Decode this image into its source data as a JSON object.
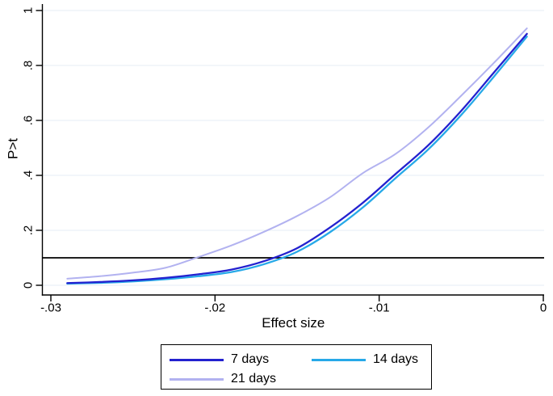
{
  "figure": {
    "background": "#ffffff",
    "axis_color": "#000000",
    "grid_color": "#e9f1f6",
    "text_color": "#000000"
  },
  "chart_data": {
    "type": "line",
    "title": "",
    "xlabel": "Effect size",
    "ylabel": "P>t",
    "x_range": [
      -0.03,
      0
    ],
    "y_range": [
      0,
      1
    ],
    "grid": "horizontal",
    "legend_position": "bottom-center-boxed",
    "x_ticks": {
      "values": [
        -0.03,
        -0.02,
        -0.01,
        0
      ],
      "labels": [
        "-.03",
        "-.02",
        "-.01",
        "0"
      ]
    },
    "y_ticks": {
      "values": [
        0,
        0.2,
        0.4,
        0.6,
        0.8,
        1
      ],
      "labels": [
        "0",
        ".2",
        ".4",
        ".6",
        ".8",
        "1"
      ]
    },
    "reference_line": {
      "y": 0.1,
      "color": "#000000"
    },
    "x": [
      -0.029,
      -0.027,
      -0.025,
      -0.023,
      -0.021,
      -0.019,
      -0.017,
      -0.015,
      -0.013,
      -0.011,
      -0.009,
      -0.007,
      -0.005,
      -0.003,
      -0.001
    ],
    "series": [
      {
        "name": "7 days",
        "color": "#2321cf",
        "width": 2.3,
        "values": [
          0.008,
          0.012,
          0.018,
          0.027,
          0.04,
          0.057,
          0.088,
          0.135,
          0.21,
          0.3,
          0.405,
          0.51,
          0.635,
          0.775,
          0.915
        ]
      },
      {
        "name": "14 days",
        "color": "#27a9e8",
        "width": 2.3,
        "values": [
          0.006,
          0.009,
          0.014,
          0.022,
          0.033,
          0.048,
          0.077,
          0.122,
          0.193,
          0.283,
          0.39,
          0.495,
          0.62,
          0.76,
          0.905
        ]
      },
      {
        "name": "21 days",
        "color": "#b2b2f0",
        "width": 2.0,
        "values": [
          0.024,
          0.033,
          0.046,
          0.064,
          0.103,
          0.145,
          0.195,
          0.252,
          0.32,
          0.408,
          0.478,
          0.575,
          0.69,
          0.81,
          0.935
        ]
      }
    ]
  }
}
